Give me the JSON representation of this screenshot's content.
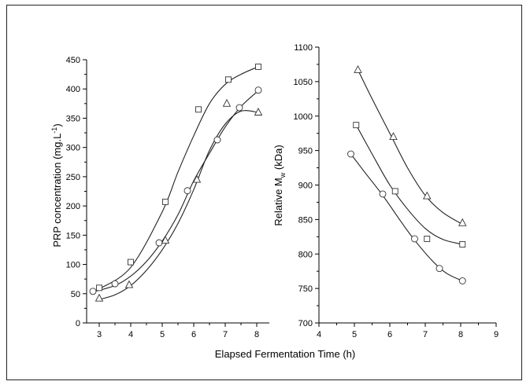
{
  "chart_data": [
    {
      "type": "scatter",
      "title": "",
      "xlabel": "",
      "ylabel": "PRP concentration (mg.L⁻¹)",
      "xlim": [
        2.6,
        8.4
      ],
      "ylim": [
        0,
        450
      ],
      "xticks": [
        3,
        4,
        5,
        6,
        7,
        8
      ],
      "yticks": [
        0,
        50,
        100,
        150,
        200,
        250,
        300,
        350,
        400,
        450
      ],
      "series": [
        {
          "marker": "square",
          "x": [
            3.0,
            4.0,
            5.1,
            6.15,
            7.1,
            8.05
          ],
          "y": [
            60,
            104,
            207,
            365,
            416,
            438
          ],
          "curve": [
            [
              3.0,
              58
            ],
            [
              4.0,
              95
            ],
            [
              5.0,
              190
            ],
            [
              5.5,
              258
            ],
            [
              6.0,
              320
            ],
            [
              6.5,
              375
            ],
            [
              7.0,
              408
            ],
            [
              7.5,
              425
            ],
            [
              8.05,
              438
            ]
          ]
        },
        {
          "marker": "circle",
          "x": [
            2.8,
            3.5,
            4.9,
            5.8,
            6.75,
            7.45,
            8.05
          ],
          "y": [
            54,
            67,
            137,
            226,
            313,
            368,
            398
          ],
          "curve": [
            [
              2.8,
              53
            ],
            [
              3.5,
              64
            ],
            [
              4.0,
              80
            ],
            [
              4.5,
              105
            ],
            [
              5.0,
              140
            ],
            [
              5.5,
              185
            ],
            [
              6.0,
              243
            ],
            [
              6.5,
              290
            ],
            [
              7.0,
              335
            ],
            [
              7.5,
              370
            ],
            [
              8.05,
              397
            ]
          ]
        },
        {
          "marker": "triangle",
          "x": [
            3.0,
            3.95,
            5.1,
            6.1,
            7.05,
            8.05
          ],
          "y": [
            42,
            65,
            141,
            245,
            375,
            360
          ],
          "curve": [
            [
              3.0,
              40
            ],
            [
              3.5,
              48
            ],
            [
              4.0,
              64
            ],
            [
              4.5,
              90
            ],
            [
              5.0,
              125
            ],
            [
              5.5,
              170
            ],
            [
              6.0,
              228
            ],
            [
              6.5,
              295
            ],
            [
              7.0,
              340
            ],
            [
              7.5,
              362
            ],
            [
              8.05,
              360
            ]
          ]
        }
      ]
    },
    {
      "type": "scatter",
      "title": "",
      "xlabel": "Elapsed Fermentation Time (h)",
      "ylabel": "Relative Mw (kDa)",
      "xlim": [
        4,
        9
      ],
      "ylim": [
        700,
        1100
      ],
      "xticks": [
        4,
        5,
        6,
        7,
        8,
        9
      ],
      "yticks": [
        700,
        750,
        800,
        850,
        900,
        950,
        1000,
        1050,
        1100
      ],
      "series": [
        {
          "marker": "triangle",
          "x": [
            5.1,
            6.1,
            7.05,
            8.05
          ],
          "y": [
            1067,
            970,
            884,
            845
          ],
          "curve": [
            [
              5.1,
              1067
            ],
            [
              5.5,
              1025
            ],
            [
              6.0,
              975
            ],
            [
              6.5,
              925
            ],
            [
              7.0,
              885
            ],
            [
              7.5,
              860
            ],
            [
              8.05,
              843
            ]
          ]
        },
        {
          "marker": "square",
          "x": [
            5.05,
            6.15,
            7.05,
            8.05
          ],
          "y": [
            987,
            891,
            822,
            814
          ],
          "curve": [
            [
              5.05,
              987
            ],
            [
              5.5,
              945
            ],
            [
              6.0,
              900
            ],
            [
              6.5,
              865
            ],
            [
              7.0,
              837
            ],
            [
              7.5,
              821
            ],
            [
              8.05,
              814
            ]
          ]
        },
        {
          "marker": "circle",
          "x": [
            4.9,
            5.8,
            6.7,
            7.4,
            8.05
          ],
          "y": [
            945,
            887,
            822,
            779,
            761
          ],
          "curve": [
            [
              4.9,
              945
            ],
            [
              5.3,
              918
            ],
            [
              5.8,
              885
            ],
            [
              6.3,
              848
            ],
            [
              6.7,
              820
            ],
            [
              7.2,
              790
            ],
            [
              7.6,
              772
            ],
            [
              8.05,
              761
            ]
          ]
        }
      ]
    }
  ],
  "labels": {
    "left_ylabel_main": "PRP concentration (mg.L",
    "left_ylabel_sup": "-1",
    "left_ylabel_end": ")",
    "right_ylabel_main": "Relative M",
    "right_ylabel_sub": "w",
    "right_ylabel_end": " (kDa)",
    "shared_xlabel": "Elapsed Fermentation Time (h)"
  }
}
